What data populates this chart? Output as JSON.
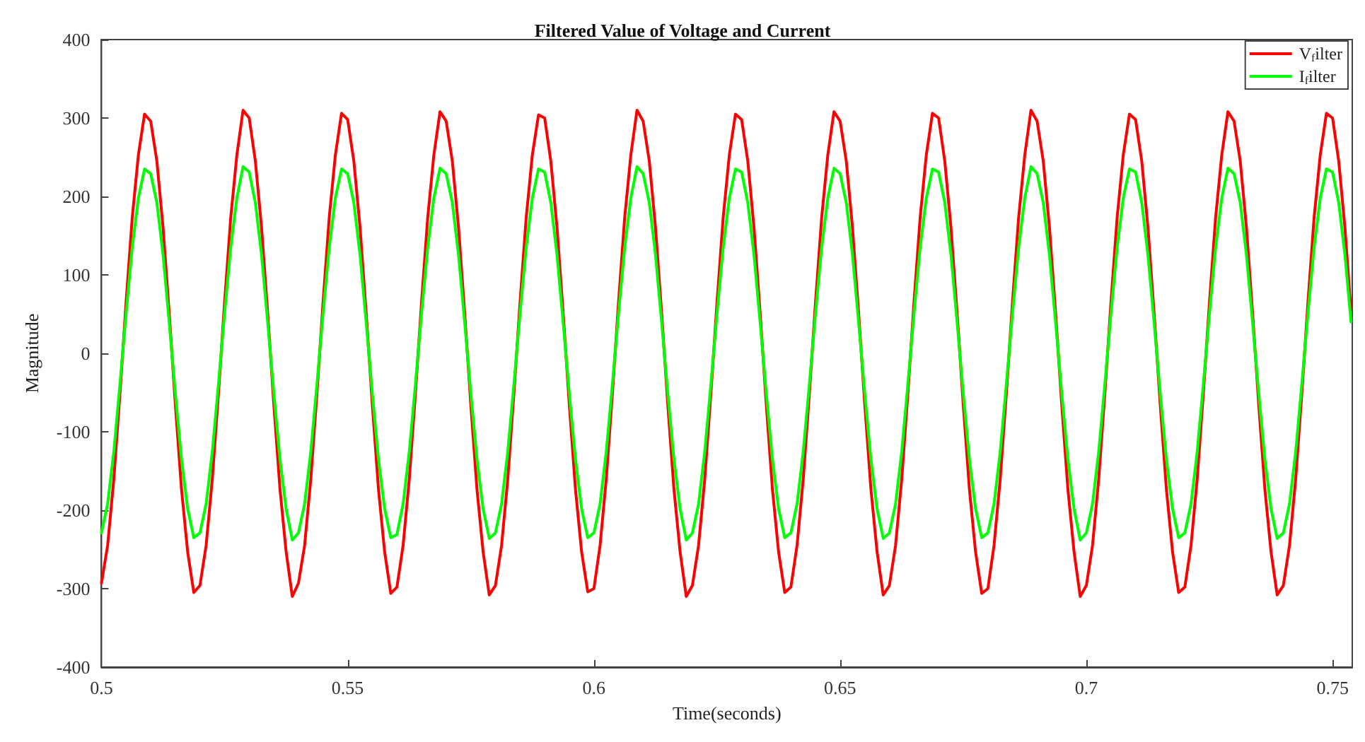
{
  "chart_data": {
    "type": "line",
    "title": "Filtered Value of Voltage and Current",
    "xlabel": "Time(seconds)",
    "ylabel": "Magnitude",
    "legend": "top right",
    "grid": false,
    "marker": "none",
    "line_style": "solid",
    "xlim": [
      0.5,
      0.754
    ],
    "xticks": [
      0.5,
      0.55,
      0.6,
      0.65,
      0.7,
      0.75
    ],
    "ylim": [
      -400,
      400
    ],
    "yticks": [
      -400,
      -300,
      -200,
      -100,
      0,
      100,
      200,
      300,
      400
    ],
    "x": [
      0.5,
      0.50125,
      0.5025,
      0.50375,
      0.505,
      0.50625,
      0.5075,
      0.50875,
      0.51,
      0.51125,
      0.5125,
      0.51375,
      0.515,
      0.51625,
      0.5175,
      0.51875,
      0.52,
      0.52125,
      0.5225,
      0.52375,
      0.525,
      0.52625,
      0.5275,
      0.52875,
      0.53,
      0.53125,
      0.5325,
      0.53375,
      0.535,
      0.53625,
      0.5375,
      0.53875,
      0.54,
      0.54125,
      0.5425,
      0.54375,
      0.545,
      0.54625,
      0.5475,
      0.54875,
      0.55,
      0.55125,
      0.5525,
      0.55375,
      0.555,
      0.55625,
      0.5575,
      0.55875,
      0.56,
      0.56125,
      0.5625,
      0.56375,
      0.565,
      0.56625,
      0.5675,
      0.56875,
      0.57,
      0.57125,
      0.5725,
      0.57375,
      0.575,
      0.57625,
      0.5775,
      0.57875,
      0.58,
      0.58125,
      0.5825,
      0.58375,
      0.585,
      0.58625,
      0.5875,
      0.58875,
      0.59,
      0.59125,
      0.5925,
      0.59375,
      0.595,
      0.59625,
      0.5975,
      0.59875,
      0.6,
      0.60125,
      0.6025,
      0.60375,
      0.605,
      0.60625,
      0.6075,
      0.60875,
      0.61,
      0.61125,
      0.6125,
      0.61375,
      0.615,
      0.61625,
      0.6175,
      0.61875,
      0.62,
      0.62125,
      0.6225,
      0.62375,
      0.625,
      0.62625,
      0.6275,
      0.62875,
      0.63,
      0.63125,
      0.6325,
      0.63375,
      0.635,
      0.63625,
      0.6375,
      0.63875,
      0.64,
      0.64125,
      0.6425,
      0.64375,
      0.645,
      0.64625,
      0.6475,
      0.64875,
      0.65,
      0.65125,
      0.6525,
      0.65375,
      0.655,
      0.65625,
      0.6575,
      0.65875,
      0.66,
      0.66125,
      0.6625,
      0.66375,
      0.665,
      0.66625,
      0.6675,
      0.66875,
      0.67,
      0.67125,
      0.6725,
      0.67375,
      0.675,
      0.67625,
      0.6775,
      0.67875,
      0.68,
      0.68125,
      0.6825,
      0.68375,
      0.685,
      0.68625,
      0.6875,
      0.68875,
      0.69,
      0.69125,
      0.6925,
      0.69375,
      0.695,
      0.69625,
      0.6975,
      0.69875,
      0.7,
      0.70125,
      0.7025,
      0.70375,
      0.705,
      0.70625,
      0.7075,
      0.70875,
      0.71,
      0.71125,
      0.7125,
      0.71375,
      0.715,
      0.71625,
      0.7175,
      0.71875,
      0.72,
      0.72125,
      0.7225,
      0.72375,
      0.725,
      0.72625,
      0.7275,
      0.72875,
      0.73,
      0.73125,
      0.7325,
      0.73375,
      0.735,
      0.73625,
      0.7375,
      0.73875,
      0.74,
      0.74125,
      0.7425,
      0.74375,
      0.745,
      0.74625,
      0.7475,
      0.74875,
      0.75,
      0.75125,
      0.7525,
      0.75375
    ],
    "series": [
      {
        "name": "V$_{f}$ilter",
        "color": "#ff0000",
        "values": [
          -293,
          -245,
          -161,
          -52,
          65,
          173,
          253,
          305,
          296,
          245,
          161,
          52,
          -65,
          -173,
          -253,
          -305,
          -296,
          -245,
          -161,
          -52,
          65,
          173,
          253,
          310,
          300,
          245,
          161,
          52,
          -65,
          -173,
          -253,
          -310,
          -293,
          -245,
          -161,
          -52,
          65,
          173,
          253,
          306,
          298,
          245,
          161,
          52,
          -65,
          -173,
          -253,
          -306,
          -298,
          -245,
          -161,
          -52,
          65,
          173,
          253,
          308,
          296,
          245,
          161,
          52,
          -65,
          -173,
          -253,
          -308,
          -296,
          -245,
          -161,
          -52,
          65,
          173,
          253,
          304,
          300,
          245,
          161,
          52,
          -65,
          -173,
          -253,
          -304,
          -300,
          -245,
          -161,
          -52,
          65,
          173,
          253,
          310,
          296,
          245,
          161,
          52,
          -65,
          -173,
          -253,
          -310,
          -296,
          -245,
          -161,
          -52,
          65,
          173,
          253,
          305,
          298,
          245,
          161,
          52,
          -65,
          -173,
          -253,
          -305,
          -298,
          -245,
          -161,
          -52,
          65,
          173,
          253,
          308,
          296,
          245,
          161,
          52,
          -65,
          -173,
          -253,
          -308,
          -296,
          -245,
          -161,
          -52,
          65,
          173,
          253,
          306,
          300,
          245,
          161,
          52,
          -65,
          -173,
          -253,
          -306,
          -300,
          -245,
          -161,
          -52,
          65,
          173,
          253,
          310,
          296,
          245,
          161,
          52,
          -65,
          -173,
          -253,
          -310,
          -296,
          -245,
          -161,
          -52,
          65,
          173,
          253,
          305,
          298,
          245,
          161,
          52,
          -65,
          -173,
          -253,
          -305,
          -298,
          -245,
          -161,
          -52,
          65,
          173,
          253,
          308,
          296,
          245,
          161,
          52,
          -65,
          -173,
          -253,
          -308,
          -296,
          -245,
          -161,
          -52,
          65,
          173,
          253,
          306,
          300,
          245,
          161,
          52
        ]
      },
      {
        "name": "I$_{f}$ilter",
        "color": "#00ff00",
        "values": [
          -229,
          -192,
          -126,
          -40,
          51,
          135,
          198,
          235,
          229,
          192,
          126,
          40,
          -51,
          -135,
          -198,
          -235,
          -229,
          -192,
          -126,
          -40,
          51,
          135,
          198,
          238,
          231,
          192,
          126,
          40,
          -51,
          -135,
          -198,
          -238,
          -229,
          -192,
          -126,
          -40,
          51,
          135,
          198,
          235,
          229,
          192,
          126,
          40,
          -51,
          -135,
          -198,
          -235,
          -231,
          -192,
          -126,
          -40,
          51,
          135,
          198,
          236,
          229,
          192,
          126,
          40,
          -51,
          -135,
          -198,
          -236,
          -229,
          -192,
          -126,
          -40,
          51,
          135,
          198,
          235,
          231,
          192,
          126,
          40,
          -51,
          -135,
          -198,
          -235,
          -229,
          -192,
          -126,
          -40,
          51,
          135,
          198,
          238,
          229,
          192,
          126,
          40,
          -51,
          -135,
          -198,
          -238,
          -229,
          -192,
          -126,
          -40,
          51,
          135,
          198,
          235,
          231,
          192,
          126,
          40,
          -51,
          -135,
          -198,
          -235,
          -229,
          -192,
          -126,
          -40,
          51,
          135,
          198,
          236,
          229,
          192,
          126,
          40,
          -51,
          -135,
          -198,
          -236,
          -229,
          -192,
          -126,
          -40,
          51,
          135,
          198,
          235,
          231,
          192,
          126,
          40,
          -51,
          -135,
          -198,
          -235,
          -229,
          -192,
          -126,
          -40,
          51,
          135,
          198,
          238,
          229,
          192,
          126,
          40,
          -51,
          -135,
          -198,
          -238,
          -229,
          -192,
          -126,
          -40,
          51,
          135,
          198,
          235,
          231,
          192,
          126,
          40,
          -51,
          -135,
          -198,
          -235,
          -229,
          -192,
          -126,
          -40,
          51,
          135,
          198,
          236,
          229,
          192,
          126,
          40,
          -51,
          -135,
          -198,
          -236,
          -229,
          -192,
          -126,
          -40,
          51,
          135,
          198,
          235,
          231,
          192,
          126,
          40
        ]
      }
    ]
  }
}
